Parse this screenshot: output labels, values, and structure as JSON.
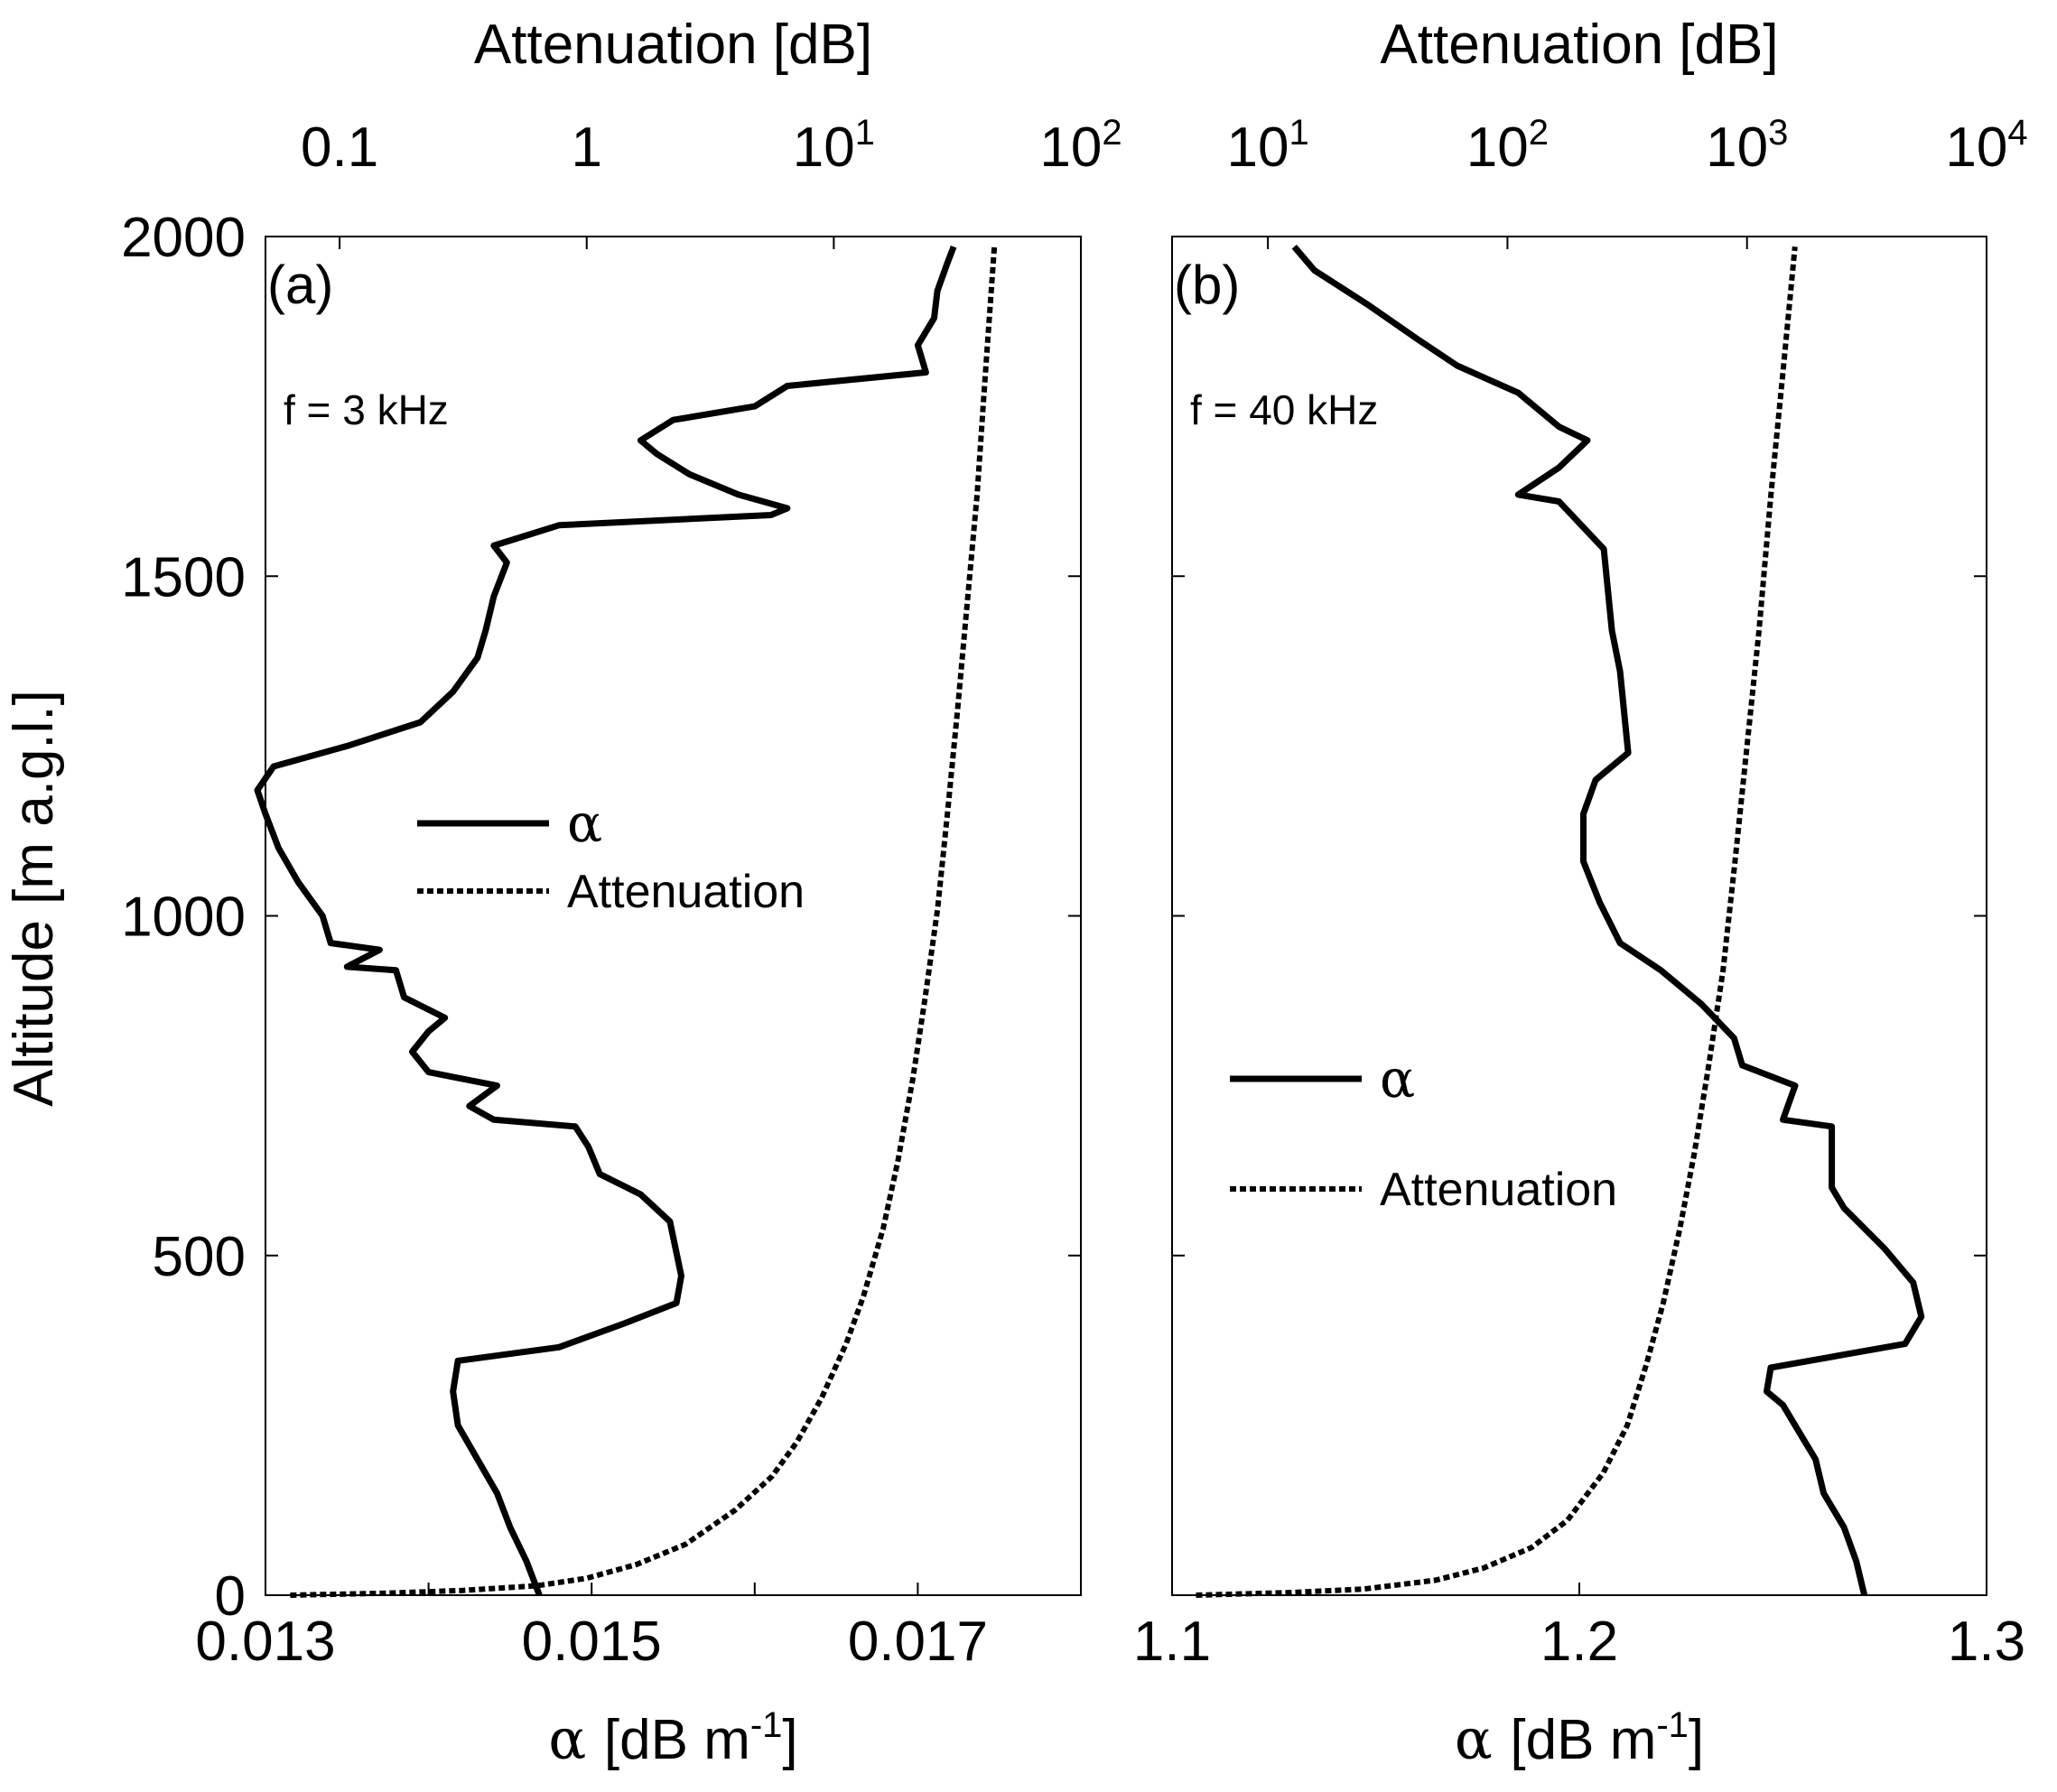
{
  "chart_data": [
    {
      "type": "line",
      "panel_label": "(a)",
      "annotation": "f = 3 kHz",
      "xlabel": "α [dB m-1]",
      "xlabel_parts": {
        "symbol": "α",
        "unit": "[dB m",
        "exp": "-1",
        "close": "]"
      },
      "ylabel": "Altitude [m a.g.l.]",
      "x2label": "Attenuation [dB]",
      "ylim": [
        0,
        2000
      ],
      "xlim": [
        0.013,
        0.018
      ],
      "x2lim_log10": [
        -1.3,
        2.0
      ],
      "x_ticks": [
        0.013,
        0.014,
        0.015,
        0.016,
        0.017,
        0.018
      ],
      "x_tick_labels": [
        {
          "value": 0.013,
          "text": "0.013"
        },
        {
          "value": 0.015,
          "text": "0.015"
        },
        {
          "value": 0.017,
          "text": "0.017"
        }
      ],
      "x2_tick_labels": [
        {
          "log10": -1,
          "base": "0.1",
          "exp": ""
        },
        {
          "log10": 0,
          "base": "1",
          "exp": ""
        },
        {
          "log10": 1,
          "base": "10",
          "exp": "1"
        },
        {
          "log10": 2,
          "base": "10",
          "exp": "2"
        }
      ],
      "y_ticks": [
        0,
        500,
        1000,
        1500,
        2000
      ],
      "legend": {
        "position": "center-left",
        "entries": [
          "α",
          "Attenuation"
        ]
      },
      "series": [
        {
          "name": "α",
          "style": "solid",
          "points": [
            [
              0.01468,
              0
            ],
            [
              0.0146,
              50
            ],
            [
              0.0145,
              100
            ],
            [
              0.01442,
              150
            ],
            [
              0.0143,
              200
            ],
            [
              0.01418,
              250
            ],
            [
              0.01415,
              300
            ],
            [
              0.01418,
              345
            ],
            [
              0.0148,
              365
            ],
            [
              0.0152,
              400
            ],
            [
              0.01552,
              430
            ],
            [
              0.01555,
              470
            ],
            [
              0.01548,
              550
            ],
            [
              0.0153,
              590
            ],
            [
              0.01505,
              620
            ],
            [
              0.01498,
              660
            ],
            [
              0.0149,
              690
            ],
            [
              0.0144,
              700
            ],
            [
              0.01425,
              720
            ],
            [
              0.01442,
              750
            ],
            [
              0.014,
              770
            ],
            [
              0.0139,
              800
            ],
            [
              0.014,
              830
            ],
            [
              0.0141,
              850
            ],
            [
              0.01385,
              880
            ],
            [
              0.0138,
              920
            ],
            [
              0.0135,
              925
            ],
            [
              0.0137,
              950
            ],
            [
              0.0134,
              960
            ],
            [
              0.01335,
              1000
            ],
            [
              0.0132,
              1050
            ],
            [
              0.01308,
              1100
            ],
            [
              0.013,
              1150
            ],
            [
              0.01295,
              1185
            ],
            [
              0.01305,
              1220
            ],
            [
              0.0135,
              1250
            ],
            [
              0.01395,
              1285
            ],
            [
              0.01415,
              1330
            ],
            [
              0.0143,
              1380
            ],
            [
              0.01435,
              1420
            ],
            [
              0.0144,
              1470
            ],
            [
              0.01448,
              1520
            ],
            [
              0.0144,
              1545
            ],
            [
              0.0146,
              1560
            ],
            [
              0.0148,
              1575
            ],
            [
              0.0161,
              1590
            ],
            [
              0.0162,
              1600
            ],
            [
              0.0159,
              1620
            ],
            [
              0.0156,
              1650
            ],
            [
              0.0154,
              1680
            ],
            [
              0.0153,
              1700
            ],
            [
              0.0155,
              1730
            ],
            [
              0.016,
              1750
            ],
            [
              0.0162,
              1780
            ],
            [
              0.01705,
              1800
            ],
            [
              0.017,
              1840
            ],
            [
              0.0171,
              1880
            ],
            [
              0.01712,
              1920
            ],
            [
              0.01718,
              1960
            ],
            [
              0.01722,
              1985
            ]
          ]
        },
        {
          "name": "Attenuation",
          "style": "dashed",
          "points": [
            [
              -1.2,
              0
            ],
            [
              -0.8,
              3
            ],
            [
              -0.5,
              7
            ],
            [
              -0.2,
              14
            ],
            [
              0.0,
              25
            ],
            [
              0.2,
              45
            ],
            [
              0.4,
              75
            ],
            [
              0.6,
              125
            ],
            [
              0.75,
              175
            ],
            [
              0.85,
              225
            ],
            [
              0.95,
              290
            ],
            [
              1.05,
              370
            ],
            [
              1.12,
              440
            ],
            [
              1.2,
              540
            ],
            [
              1.26,
              640
            ],
            [
              1.32,
              760
            ],
            [
              1.37,
              880
            ],
            [
              1.42,
              1010
            ],
            [
              1.46,
              1150
            ],
            [
              1.5,
              1300
            ],
            [
              1.54,
              1460
            ],
            [
              1.58,
              1620
            ],
            [
              1.61,
              1780
            ],
            [
              1.65,
              1985
            ]
          ]
        }
      ]
    },
    {
      "type": "line",
      "panel_label": "(b)",
      "annotation": "f = 40 kHz",
      "xlabel": "α [dB m-1]",
      "xlabel_parts": {
        "symbol": "α",
        "unit": "[dB m",
        "exp": "-1",
        "close": "]"
      },
      "ylabel": "Altitude [m a.g.l.]",
      "x2label": "Attenuation [dB]",
      "ylim": [
        0,
        2000
      ],
      "xlim": [
        1.1,
        1.3
      ],
      "x2lim_log10": [
        0.6,
        4.0
      ],
      "x_ticks": [
        1.1,
        1.2,
        1.3
      ],
      "x_tick_labels": [
        {
          "value": 1.1,
          "text": "1.1"
        },
        {
          "value": 1.2,
          "text": "1.2"
        },
        {
          "value": 1.3,
          "text": "1.3"
        }
      ],
      "x2_tick_labels": [
        {
          "log10": 1,
          "base": "10",
          "exp": "1"
        },
        {
          "log10": 2,
          "base": "10",
          "exp": "2"
        },
        {
          "log10": 3,
          "base": "10",
          "exp": "3"
        },
        {
          "log10": 4,
          "base": "10",
          "exp": "4"
        }
      ],
      "y_ticks": [
        0,
        500,
        1000,
        1500,
        2000
      ],
      "legend": {
        "position": "center-left",
        "entries": [
          "α",
          "Attenuation"
        ]
      },
      "series": [
        {
          "name": "α",
          "style": "solid",
          "points": [
            [
              1.27,
              0
            ],
            [
              1.268,
              50
            ],
            [
              1.265,
              100
            ],
            [
              1.26,
              150
            ],
            [
              1.258,
              200
            ],
            [
              1.254,
              240
            ],
            [
              1.25,
              280
            ],
            [
              1.246,
              300
            ],
            [
              1.247,
              335
            ],
            [
              1.28,
              370
            ],
            [
              1.284,
              410
            ],
            [
              1.282,
              460
            ],
            [
              1.275,
              510
            ],
            [
              1.265,
              570
            ],
            [
              1.262,
              600
            ],
            [
              1.262,
              690
            ],
            [
              1.25,
              700
            ],
            [
              1.253,
              750
            ],
            [
              1.24,
              780
            ],
            [
              1.238,
              820
            ],
            [
              1.23,
              870
            ],
            [
              1.22,
              920
            ],
            [
              1.21,
              960
            ],
            [
              1.205,
              1020
            ],
            [
              1.201,
              1080
            ],
            [
              1.201,
              1150
            ],
            [
              1.204,
              1200
            ],
            [
              1.212,
              1240
            ],
            [
              1.211,
              1300
            ],
            [
              1.21,
              1360
            ],
            [
              1.208,
              1420
            ],
            [
              1.207,
              1480
            ],
            [
              1.206,
              1540
            ],
            [
              1.195,
              1610
            ],
            [
              1.185,
              1620
            ],
            [
              1.195,
              1660
            ],
            [
              1.202,
              1700
            ],
            [
              1.195,
              1720
            ],
            [
              1.185,
              1770
            ],
            [
              1.17,
              1810
            ],
            [
              1.16,
              1850
            ],
            [
              1.148,
              1900
            ],
            [
              1.135,
              1950
            ],
            [
              1.13,
              1985
            ]
          ]
        },
        {
          "name": "Attenuation",
          "style": "dashed",
          "points": [
            [
              0.7,
              0
            ],
            [
              1.1,
              4
            ],
            [
              1.4,
              9
            ],
            [
              1.7,
              22
            ],
            [
              1.9,
              40
            ],
            [
              2.1,
              70
            ],
            [
              2.25,
              110
            ],
            [
              2.4,
              180
            ],
            [
              2.5,
              250
            ],
            [
              2.58,
              340
            ],
            [
              2.65,
              430
            ],
            [
              2.72,
              540
            ],
            [
              2.78,
              650
            ],
            [
              2.84,
              780
            ],
            [
              2.9,
              920
            ],
            [
              2.95,
              1080
            ],
            [
              3.0,
              1250
            ],
            [
              3.05,
              1420
            ],
            [
              3.1,
              1620
            ],
            [
              3.15,
              1800
            ],
            [
              3.2,
              1985
            ]
          ]
        }
      ]
    }
  ]
}
